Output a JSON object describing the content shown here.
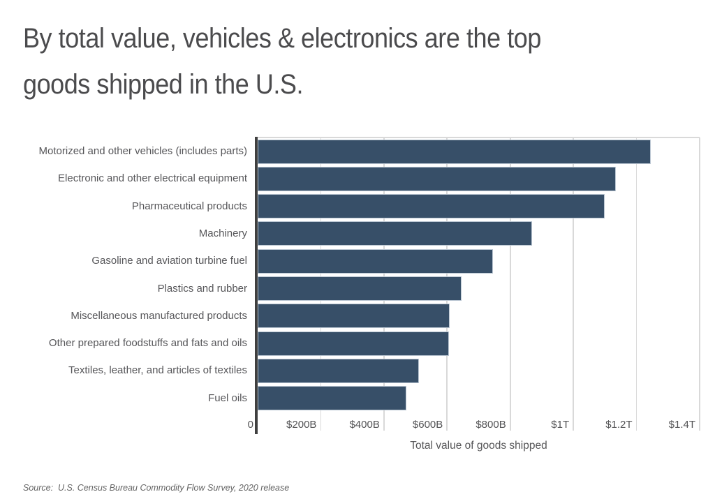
{
  "title": {
    "lines": [
      "By total value, vehicles & electronics are the top",
      "goods shipped in the U.S."
    ]
  },
  "chart_data": {
    "type": "bar",
    "orientation": "horizontal",
    "title": "By total value, vehicles & electronics are the top goods shipped in the U.S.",
    "categories": [
      "Motorized and other vehicles (includes parts)",
      "Electronic and other electrical equipment",
      "Pharmaceutical products",
      "Machinery",
      "Gasoline and aviation turbine fuel",
      "Plastics and rubber",
      "Miscellaneous manufactured products",
      "Other prepared foodstuffs and fats and oils",
      "Textiles, leather, and articles of textiles",
      "Fuel oils"
    ],
    "values": [
      1246,
      1135,
      1100,
      870,
      745,
      645,
      608,
      606,
      510,
      472
    ],
    "value_unit": "billions of USD",
    "xlabel": "Total value of goods shipped",
    "xlim": [
      0,
      1400
    ],
    "xticks": [
      {
        "value": 0,
        "label": "0"
      },
      {
        "value": 200,
        "label": "$200B"
      },
      {
        "value": 400,
        "label": "$400B"
      },
      {
        "value": 600,
        "label": "$600B"
      },
      {
        "value": 800,
        "label": "$800B"
      },
      {
        "value": 1000,
        "label": "$1T"
      },
      {
        "value": 1200,
        "label": "$1.2T"
      },
      {
        "value": 1400,
        "label": "$1.4T"
      }
    ],
    "grid": "vertical",
    "legend": "none",
    "bar_color": "#374f68"
  },
  "source": {
    "text": "Source:  U.S. Census Bureau Commodity Flow Survey, 2020 release"
  },
  "colors": {
    "bar": "#374f68",
    "bar_stroke": "#b9c5d1",
    "axis_line": "#404040",
    "gridline": "#d9d9d9",
    "title_text": "#4b4b4d",
    "label_text": "#565659",
    "source_text": "#646464",
    "background": "#ffffff"
  }
}
